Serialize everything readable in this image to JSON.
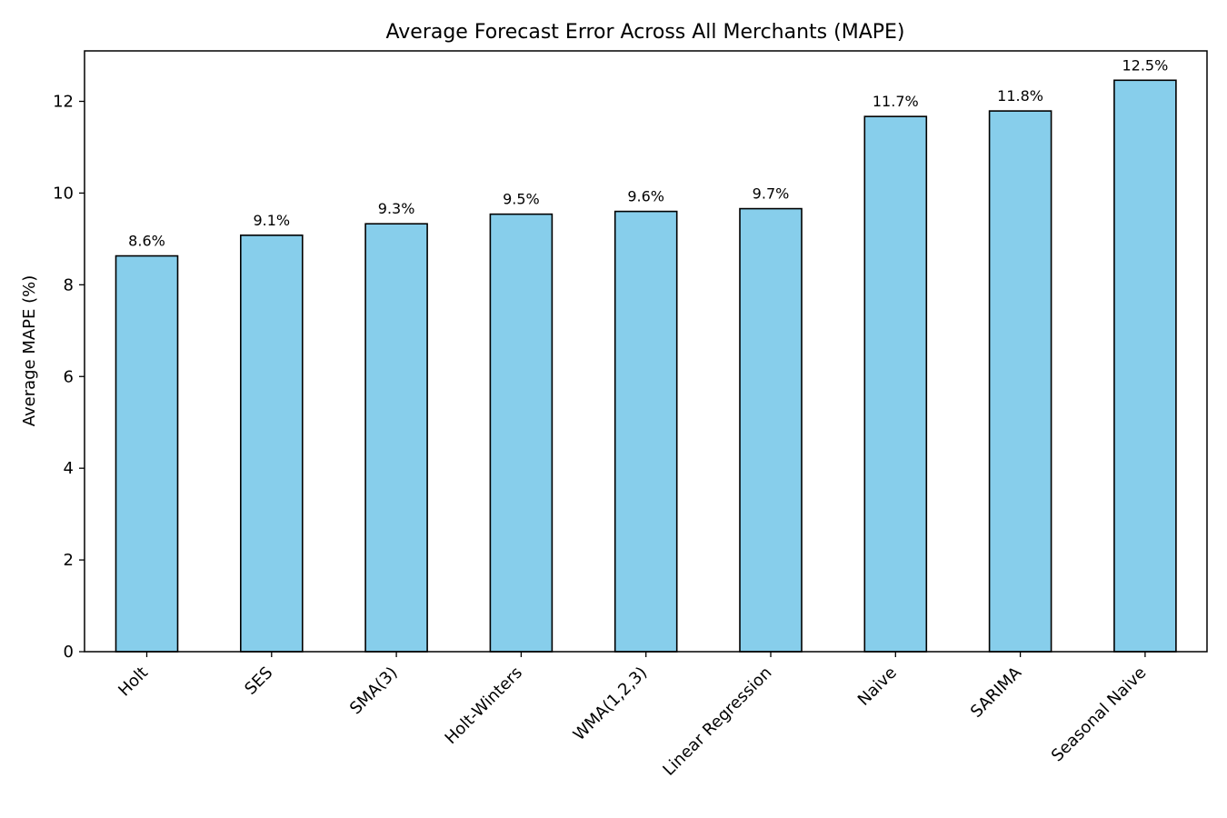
{
  "chart_data": {
    "type": "bar",
    "title": "Average Forecast Error Across All Merchants (MAPE)",
    "xlabel": "",
    "ylabel": "Average MAPE (%)",
    "ylim": [
      0,
      13.1
    ],
    "yticks": [
      0,
      2,
      4,
      6,
      8,
      10,
      12
    ],
    "categories": [
      "Holt",
      "SES",
      "SMA(3)",
      "Holt-Winters",
      "WMA(1,2,3)",
      "Linear Regression",
      "Naive",
      "SARIMA",
      "Seasonal Naive"
    ],
    "values": [
      8.63,
      9.08,
      9.33,
      9.54,
      9.6,
      9.66,
      11.67,
      11.79,
      12.46
    ],
    "data_labels": [
      "8.6%",
      "9.1%",
      "9.3%",
      "9.5%",
      "9.6%",
      "9.7%",
      "11.7%",
      "11.8%",
      "12.5%"
    ],
    "bar_color": "#87ceeb",
    "bar_edge_color": "#000000",
    "grid": false,
    "legend": "none"
  }
}
